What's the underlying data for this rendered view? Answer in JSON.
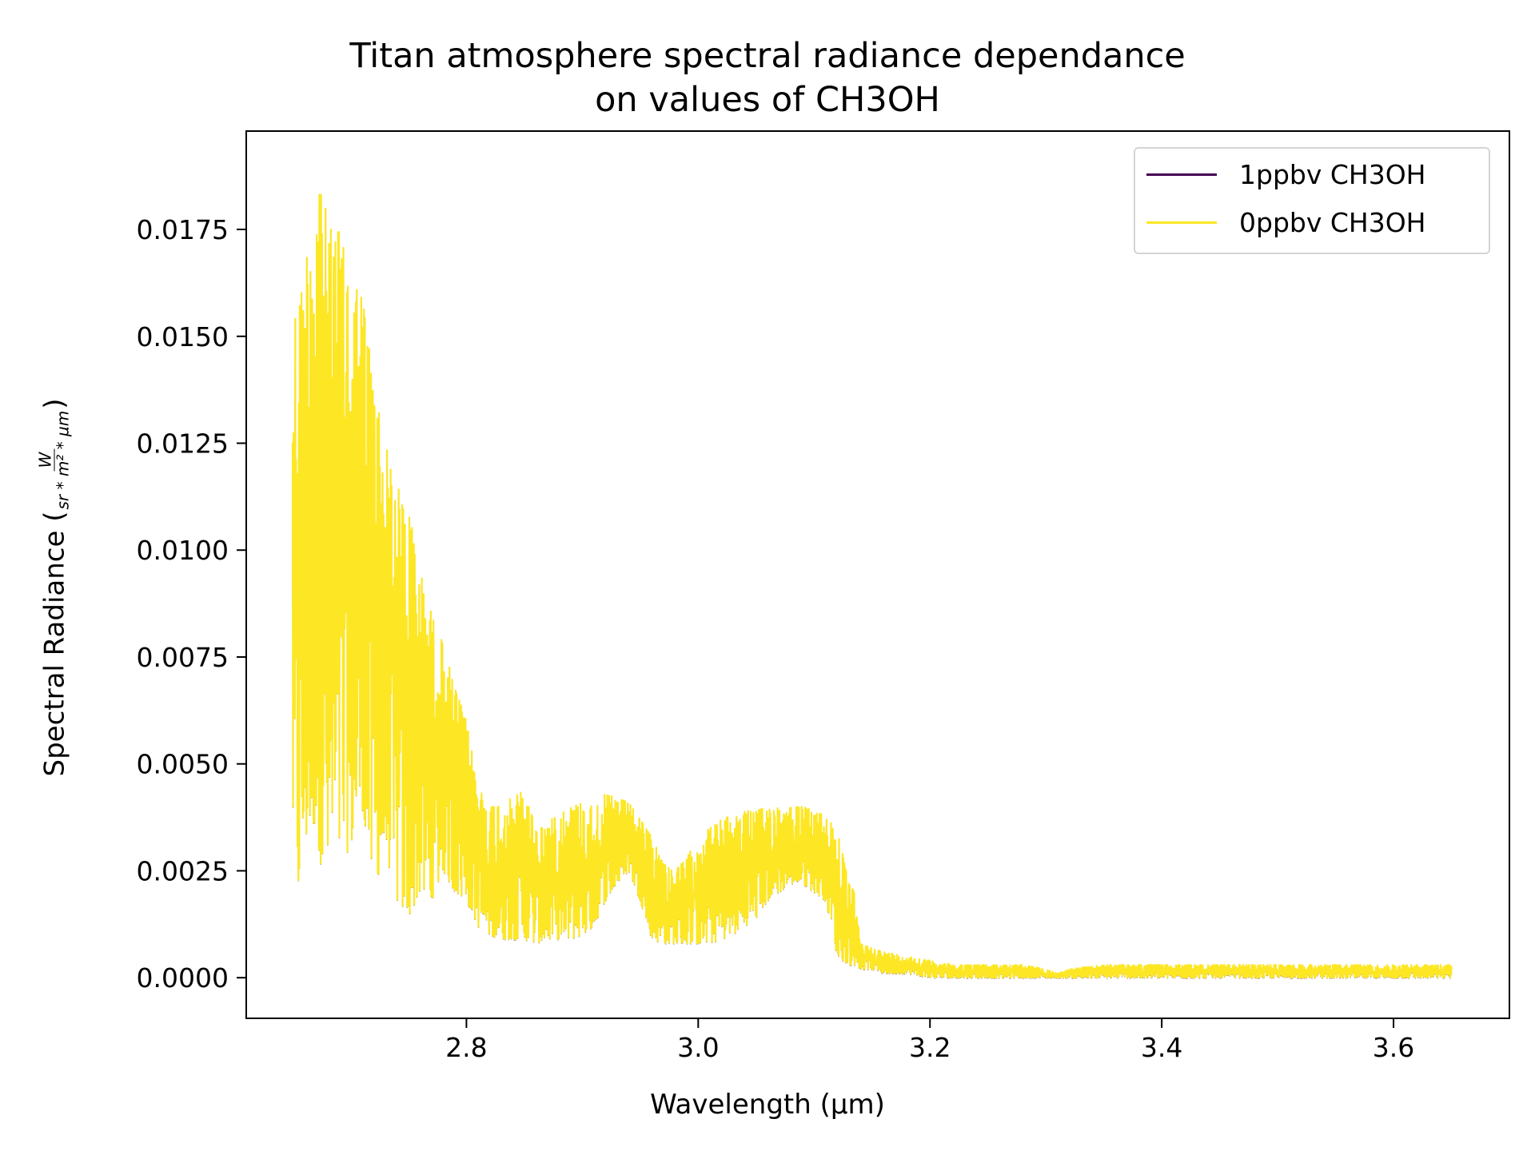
{
  "chart_data": {
    "type": "line",
    "title": [
      "Titan atmosphere spectral radiance dependance",
      "on values of CH3OH"
    ],
    "xlabel": "Wavelength (µm)",
    "ylabel": {
      "prefix": "Spectral Radiance (",
      "numerator": "W",
      "denominator": "sr * m² * µm",
      "suffix": ")"
    },
    "xlim": [
      2.61,
      3.7
    ],
    "ylim": [
      -0.00095,
      0.0198
    ],
    "xticks": [
      2.8,
      3.0,
      3.2,
      3.4,
      3.6
    ],
    "xtick_labels": [
      "2.8",
      "3.0",
      "3.2",
      "3.4",
      "3.6"
    ],
    "yticks": [
      0.0,
      0.0025,
      0.005,
      0.0075,
      0.01,
      0.0125,
      0.015,
      0.0175
    ],
    "ytick_labels": [
      "0.0000",
      "0.0025",
      "0.0050",
      "0.0075",
      "0.0100",
      "0.0125",
      "0.0150",
      "0.0175"
    ],
    "grid": false,
    "legend_position": "top-right",
    "x_range": [
      2.65,
      3.65
    ],
    "envelope": {
      "x": [
        2.65,
        2.655,
        2.66,
        2.665,
        2.67,
        2.675,
        2.68,
        2.69,
        2.7,
        2.71,
        2.72,
        2.73,
        2.74,
        2.75,
        2.76,
        2.77,
        2.78,
        2.79,
        2.8,
        2.81,
        2.82,
        2.83,
        2.84,
        2.85,
        2.86,
        2.87,
        2.88,
        2.89,
        2.9,
        2.91,
        2.92,
        2.93,
        2.94,
        2.95,
        2.96,
        2.97,
        2.98,
        2.99,
        3.0,
        3.01,
        3.02,
        3.03,
        3.04,
        3.05,
        3.06,
        3.07,
        3.08,
        3.09,
        3.1,
        3.11,
        3.12,
        3.13,
        3.135,
        3.14,
        3.15,
        3.16,
        3.18,
        3.2,
        3.22,
        3.25,
        3.28,
        3.3,
        3.31,
        3.32,
        3.35,
        3.4,
        3.45,
        3.5,
        3.55,
        3.6,
        3.65
      ],
      "upper": [
        0.0153,
        0.016,
        0.0162,
        0.018,
        0.0185,
        0.0191,
        0.0175,
        0.0175,
        0.0164,
        0.016,
        0.014,
        0.0125,
        0.0115,
        0.011,
        0.0095,
        0.0085,
        0.0078,
        0.0068,
        0.006,
        0.0045,
        0.004,
        0.0041,
        0.0042,
        0.0044,
        0.0035,
        0.0036,
        0.0039,
        0.004,
        0.0041,
        0.004,
        0.0043,
        0.0042,
        0.0041,
        0.0037,
        0.0033,
        0.0027,
        0.0025,
        0.0028,
        0.0033,
        0.0035,
        0.0037,
        0.0038,
        0.0039,
        0.0039,
        0.004,
        0.004,
        0.004,
        0.004,
        0.0039,
        0.0038,
        0.0035,
        0.0022,
        0.002,
        0.0008,
        0.0007,
        0.0006,
        0.0005,
        0.0004,
        0.0003,
        0.0003,
        0.0003,
        0.0002,
        0.0001,
        0.0002,
        0.0003,
        0.0003,
        0.0003,
        0.0003,
        0.0003,
        0.0003,
        0.0003
      ],
      "lower": [
        0.0035,
        0.002,
        0.003,
        0.0034,
        0.0036,
        0.0025,
        0.0024,
        0.0028,
        0.003,
        0.004,
        0.002,
        0.003,
        0.0018,
        0.0014,
        0.002,
        0.0018,
        0.0025,
        0.002,
        0.0018,
        0.0012,
        0.001,
        0.0009,
        0.0009,
        0.0009,
        0.0008,
        0.0009,
        0.0009,
        0.0009,
        0.001,
        0.0012,
        0.0018,
        0.0022,
        0.0025,
        0.0018,
        0.0009,
        0.0008,
        0.0008,
        0.0008,
        0.0008,
        0.0008,
        0.0009,
        0.001,
        0.0012,
        0.0014,
        0.0018,
        0.002,
        0.0022,
        0.0022,
        0.002,
        0.0018,
        0.0005,
        0.0003,
        0.0003,
        0.0002,
        0.0002,
        0.0001,
        0.0001,
        0.0,
        0.0,
        0.0,
        0.0,
        0.0,
        0.0,
        0.0,
        0.0,
        0.0,
        0.0,
        0.0,
        0.0,
        0.0,
        0.0
      ]
    },
    "series": [
      {
        "name": "1ppbv CH3OH",
        "color": "#440154"
      },
      {
        "name": "0ppbv CH3OH",
        "color": "#fde725"
      }
    ]
  }
}
